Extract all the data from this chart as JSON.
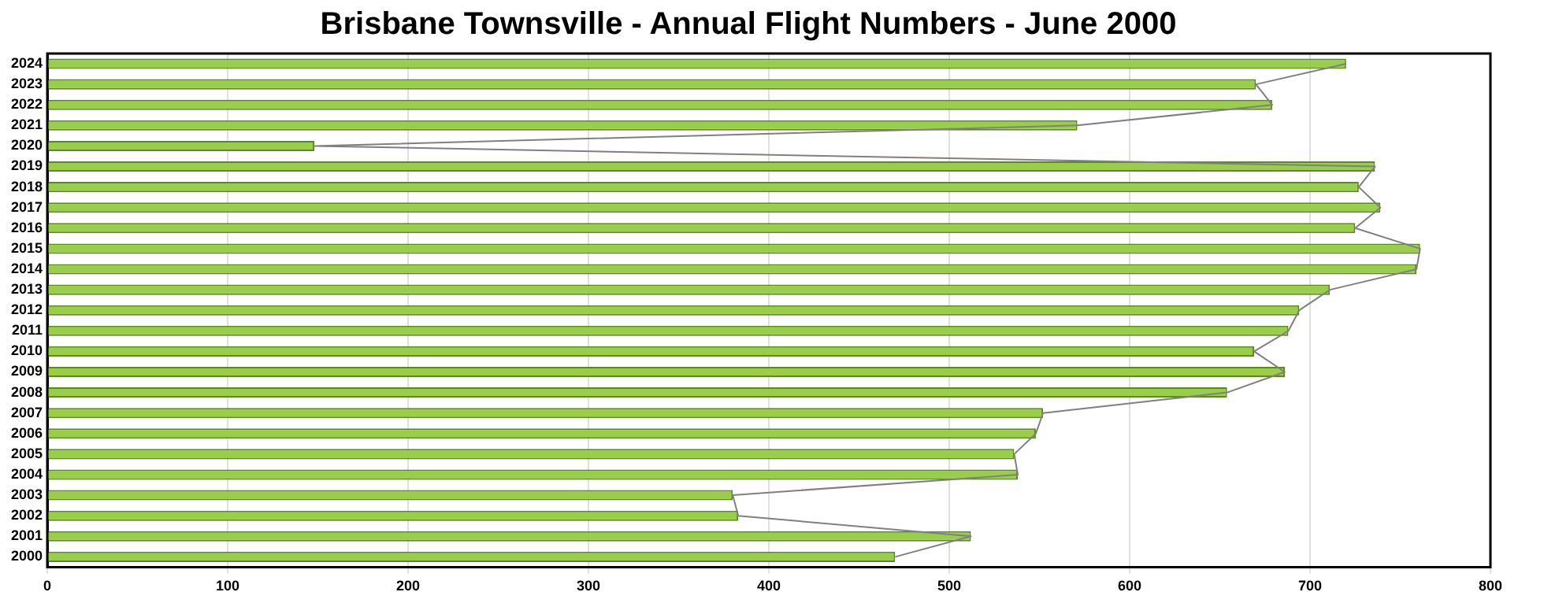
{
  "chart_data": {
    "type": "bar",
    "orientation": "horizontal",
    "title": "Brisbane Townsville - Annual Flight Numbers - June 2000",
    "categories": [
      "2024",
      "2023",
      "2022",
      "2021",
      "2020",
      "2019",
      "2018",
      "2017",
      "2016",
      "2015",
      "2014",
      "2013",
      "2012",
      "2011",
      "2010",
      "2009",
      "2008",
      "2007",
      "2006",
      "2005",
      "2004",
      "2003",
      "2002",
      "2001",
      "2000"
    ],
    "series": [
      {
        "color": "#9acd4a",
        "values": [
          720,
          670,
          679,
          571,
          148,
          736,
          727,
          739,
          725,
          761,
          759,
          711,
          694,
          688,
          669,
          686,
          654,
          552,
          548,
          536,
          538,
          380,
          383,
          512,
          470
        ]
      },
      {
        "type": "line",
        "color": "#808080",
        "values": [
          720,
          670,
          679,
          571,
          148,
          736,
          727,
          739,
          725,
          761,
          759,
          711,
          694,
          688,
          669,
          686,
          654,
          552,
          548,
          536,
          538,
          380,
          383,
          512,
          470
        ]
      }
    ],
    "xlim": [
      0,
      800
    ],
    "xticks": [
      0,
      100,
      200,
      300,
      400,
      500,
      600,
      700,
      800
    ],
    "grid": "x",
    "legend": false,
    "marker": "none",
    "line_style": "solid"
  }
}
